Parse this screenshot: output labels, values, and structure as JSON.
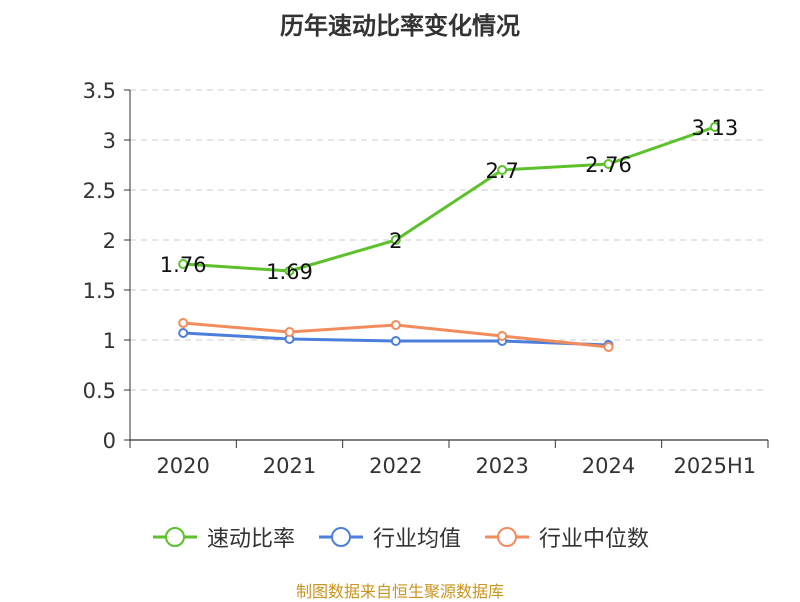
{
  "chart_data": {
    "type": "line",
    "title": "历年速动比率变化情况",
    "categories": [
      "2020",
      "2021",
      "2022",
      "2023",
      "2024",
      "2025H1"
    ],
    "ylim": [
      0,
      3.5
    ],
    "yticks": [
      "0",
      "0.5",
      "1",
      "1.5",
      "2",
      "2.5",
      "3",
      "3.5"
    ],
    "grid": true,
    "legend_position": "bottom",
    "series": [
      {
        "name": "速动比率",
        "color": "#5cc12a",
        "values": [
          1.76,
          1.69,
          2,
          2.7,
          2.76,
          3.13
        ],
        "labels": [
          "1.76",
          "1.69",
          "2",
          "2.7",
          "2.76",
          "3.13"
        ],
        "show_labels": true
      },
      {
        "name": "行业均值",
        "color": "#4c7fd9",
        "values": [
          1.07,
          1.01,
          0.99,
          0.99,
          0.95,
          null
        ],
        "show_labels": false
      },
      {
        "name": "行业中位数",
        "color": "#f28c5c",
        "values": [
          1.17,
          1.08,
          1.15,
          1.04,
          0.93,
          null
        ],
        "show_labels": false
      }
    ]
  },
  "footer": {
    "source": "制图数据来自恒生聚源数据库"
  }
}
